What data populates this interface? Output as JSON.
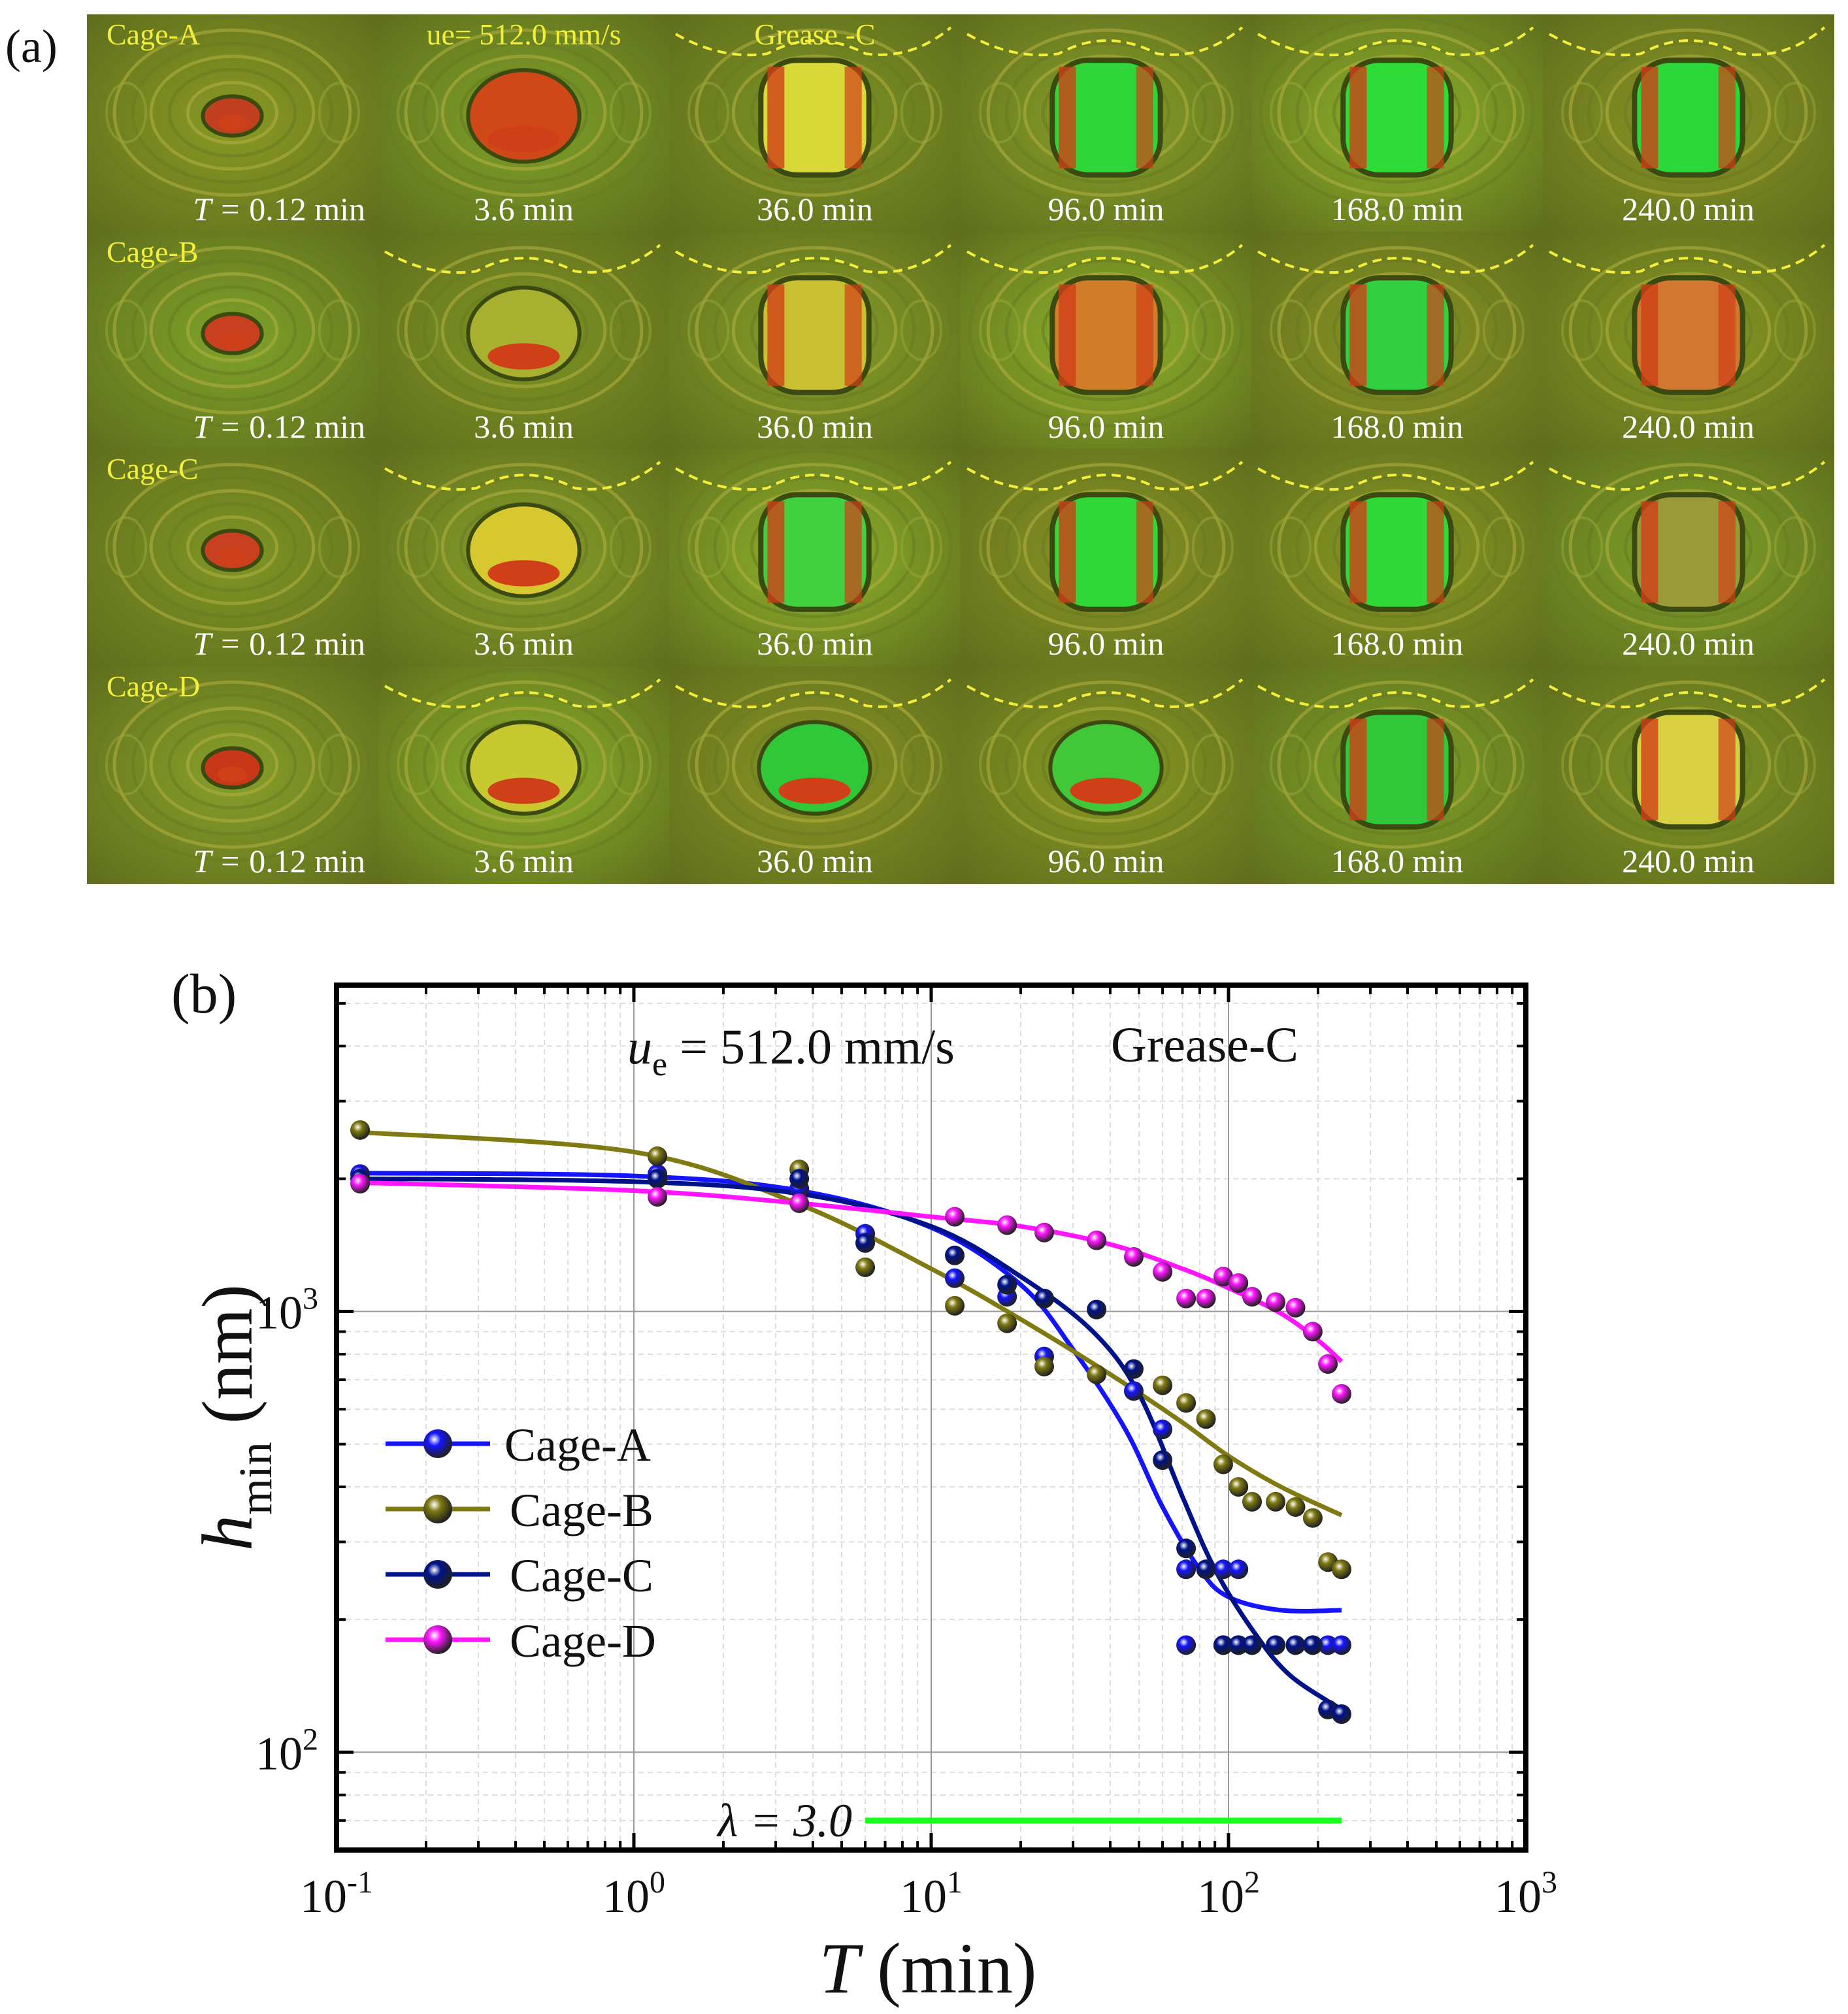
{
  "panel_a": {
    "label": "(a)",
    "rows": [
      {
        "name": "Cage-A",
        "times": [
          "0.12 min",
          "3.6 min",
          "36.0 min",
          "96.0 min",
          "168.0 min",
          "240.0 min"
        ]
      },
      {
        "name": "Cage-B",
        "times": [
          "0.12 min",
          "3.6 min",
          "36.0 min",
          "96.0 min",
          "168.0 min",
          "240.0 min"
        ]
      },
      {
        "name": "Cage-C",
        "times": [
          "0.12 min",
          "3.6 min",
          "36.0 min",
          "96.0 min",
          "168.0 min",
          "240.0 min"
        ]
      },
      {
        "name": "Cage-D",
        "times": [
          "0.12 min",
          "3.6 min",
          "36.0 min",
          "96.0 min",
          "168.0 min",
          "240.0 min"
        ]
      }
    ],
    "time_prefix": "T = ",
    "speed_label": "ue= 512.0 mm/s",
    "grease_label": "Grease -C"
  },
  "chart_data": {
    "type": "scatter",
    "panel_label": "(b)",
    "annotation_speed": "ue = 512.0 mm/s",
    "annotation_grease": "Grease-C",
    "xlabel": "T (min)",
    "ylabel": "hmin (nm)",
    "xscale": "log",
    "yscale": "log",
    "xlim": [
      0.1,
      1000
    ],
    "ylim": [
      60,
      5500
    ],
    "x_ticks": [
      "10-1",
      "100",
      "101",
      "102",
      "103"
    ],
    "y_ticks": [
      "102",
      "103"
    ],
    "grid": true,
    "legend_position": "middle-left",
    "lambda_line": {
      "label": "λ = 3.0",
      "y": 70,
      "x_start": 6,
      "x_end": 240,
      "color": "#1aff1a"
    },
    "series": [
      {
        "name": "Cage-A",
        "color": "#1414ff",
        "points": [
          [
            0.12,
            2050
          ],
          [
            1.2,
            2050
          ],
          [
            3.6,
            1900
          ],
          [
            6,
            1500
          ],
          [
            12,
            1190
          ],
          [
            18,
            1080
          ],
          [
            24,
            790
          ],
          [
            48,
            660
          ],
          [
            60,
            540
          ],
          [
            72,
            260
          ],
          [
            96,
            260
          ],
          [
            108,
            260
          ],
          [
            72,
            175
          ],
          [
            96,
            175
          ],
          [
            108,
            175
          ],
          [
            120,
            175
          ],
          [
            144,
            175
          ],
          [
            168,
            175
          ],
          [
            192,
            175
          ],
          [
            216,
            175
          ],
          [
            240,
            175
          ]
        ],
        "fit": [
          [
            0.12,
            2060
          ],
          [
            1,
            2030
          ],
          [
            3.6,
            1880
          ],
          [
            10,
            1550
          ],
          [
            20,
            1150
          ],
          [
            30,
            820
          ],
          [
            45,
            540
          ],
          [
            60,
            360
          ],
          [
            80,
            260
          ],
          [
            100,
            225
          ],
          [
            150,
            210
          ],
          [
            240,
            210
          ]
        ]
      },
      {
        "name": "Cage-B",
        "color": "#7f7a12",
        "points": [
          [
            0.12,
            2580
          ],
          [
            1.2,
            2250
          ],
          [
            3.6,
            2100
          ],
          [
            6,
            1260
          ],
          [
            12,
            1030
          ],
          [
            18,
            940
          ],
          [
            24,
            750
          ],
          [
            36,
            720
          ],
          [
            60,
            680
          ],
          [
            72,
            620
          ],
          [
            84,
            570
          ],
          [
            96,
            450
          ],
          [
            108,
            400
          ],
          [
            120,
            370
          ],
          [
            144,
            370
          ],
          [
            168,
            360
          ],
          [
            192,
            340
          ],
          [
            216,
            270
          ],
          [
            240,
            260
          ]
        ],
        "fit": [
          [
            0.12,
            2550
          ],
          [
            1,
            2300
          ],
          [
            3.6,
            1750
          ],
          [
            10,
            1250
          ],
          [
            20,
            960
          ],
          [
            40,
            720
          ],
          [
            70,
            560
          ],
          [
            100,
            470
          ],
          [
            150,
            400
          ],
          [
            240,
            345
          ]
        ]
      },
      {
        "name": "Cage-C",
        "color": "#00128a",
        "points": [
          [
            0.12,
            2000
          ],
          [
            1.2,
            2000
          ],
          [
            3.6,
            2000
          ],
          [
            6,
            1430
          ],
          [
            12,
            1340
          ],
          [
            18,
            1150
          ],
          [
            24,
            1070
          ],
          [
            36,
            1010
          ],
          [
            48,
            740
          ],
          [
            60,
            460
          ],
          [
            72,
            290
          ],
          [
            84,
            260
          ],
          [
            96,
            175
          ],
          [
            108,
            175
          ],
          [
            120,
            175
          ],
          [
            144,
            175
          ],
          [
            168,
            175
          ],
          [
            192,
            175
          ],
          [
            216,
            125
          ],
          [
            240,
            122
          ]
        ],
        "fit": [
          [
            0.12,
            2000
          ],
          [
            1,
            1970
          ],
          [
            3.6,
            1850
          ],
          [
            10,
            1560
          ],
          [
            20,
            1200
          ],
          [
            35,
            900
          ],
          [
            50,
            650
          ],
          [
            70,
            380
          ],
          [
            90,
            260
          ],
          [
            120,
            190
          ],
          [
            160,
            150
          ],
          [
            240,
            125
          ]
        ]
      },
      {
        "name": "Cage-D",
        "color": "#ff16ff",
        "points": [
          [
            0.12,
            1950
          ],
          [
            1.2,
            1820
          ],
          [
            3.6,
            1760
          ],
          [
            12,
            1640
          ],
          [
            18,
            1570
          ],
          [
            24,
            1510
          ],
          [
            36,
            1450
          ],
          [
            48,
            1330
          ],
          [
            60,
            1230
          ],
          [
            72,
            1070
          ],
          [
            84,
            1070
          ],
          [
            96,
            1200
          ],
          [
            108,
            1160
          ],
          [
            120,
            1080
          ],
          [
            144,
            1050
          ],
          [
            168,
            1020
          ],
          [
            192,
            900
          ],
          [
            216,
            760
          ],
          [
            240,
            650
          ]
        ],
        "fit": [
          [
            0.12,
            1960
          ],
          [
            1,
            1880
          ],
          [
            3.6,
            1760
          ],
          [
            10,
            1640
          ],
          [
            20,
            1560
          ],
          [
            40,
            1420
          ],
          [
            70,
            1250
          ],
          [
            100,
            1130
          ],
          [
            150,
            990
          ],
          [
            200,
            860
          ],
          [
            240,
            770
          ]
        ]
      }
    ]
  }
}
